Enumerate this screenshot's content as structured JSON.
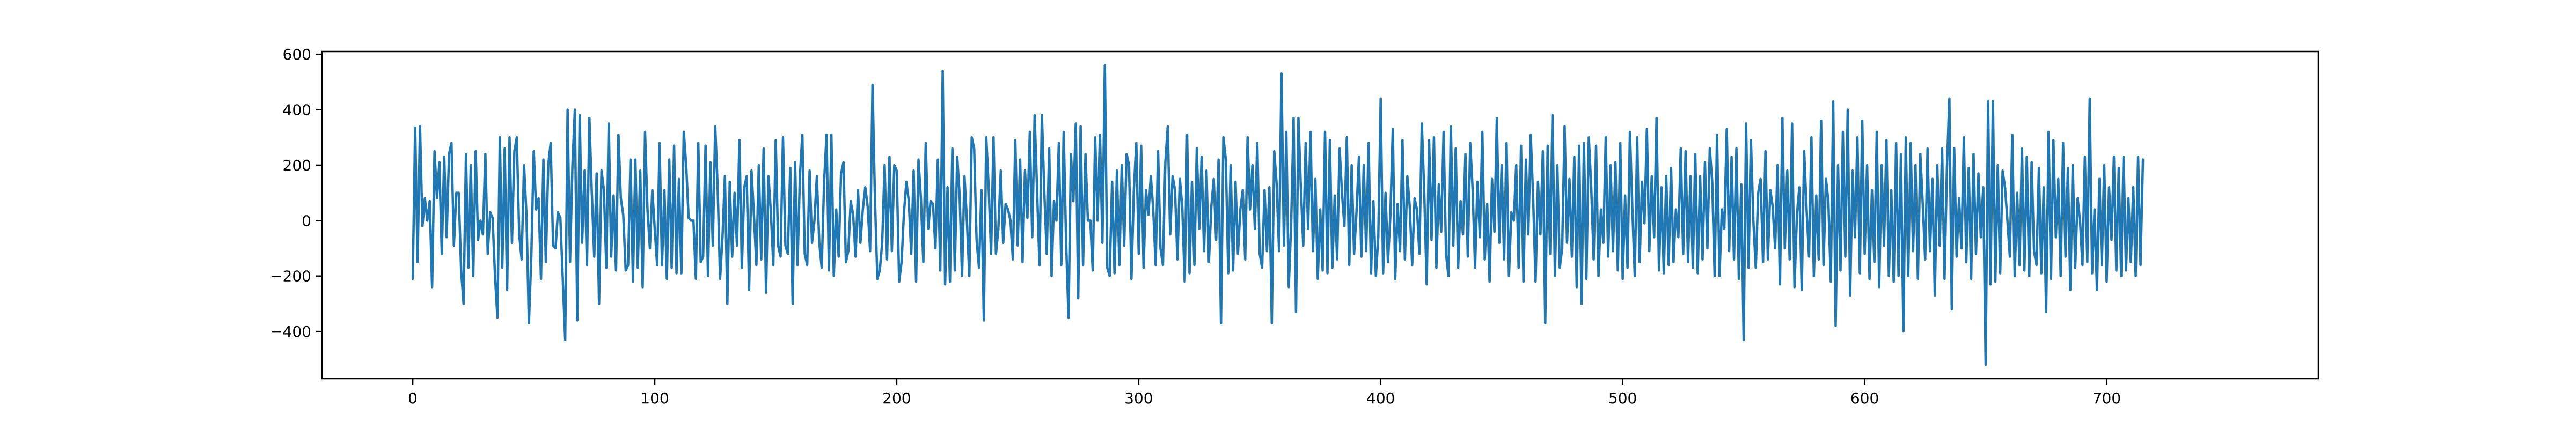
{
  "chart_data": {
    "type": "line",
    "title": "",
    "xlabel": "",
    "ylabel": "",
    "xlim": [
      -37.5,
      787.5
    ],
    "ylim": [
      -570,
      610
    ],
    "grid": false,
    "legend": "none",
    "x_ticks": [
      0,
      100,
      200,
      300,
      400,
      500,
      600,
      700
    ],
    "y_ticks": [
      -400,
      -200,
      0,
      200,
      400,
      600
    ],
    "colors": {
      "series": "#1f77b4",
      "axes": "#000000",
      "background": "#ffffff"
    },
    "series": [
      {
        "values": [
          -210,
          335,
          -150,
          340,
          -20,
          80,
          0,
          70,
          -240,
          250,
          80,
          210,
          -120,
          230,
          -60,
          240,
          280,
          -90,
          100,
          100,
          -180,
          -300,
          240,
          -170,
          200,
          -200,
          250,
          -70,
          0,
          -50,
          240,
          -120,
          30,
          10,
          -200,
          -350,
          300,
          -170,
          260,
          -250,
          300,
          -80,
          250,
          300,
          -50,
          -140,
          200,
          20,
          -370,
          -130,
          250,
          40,
          80,
          -210,
          220,
          -150,
          200,
          280,
          -90,
          -100,
          30,
          10,
          -210,
          -430,
          400,
          -150,
          200,
          400,
          -360,
          380,
          -80,
          180,
          -160,
          370,
          100,
          -130,
          170,
          -300,
          180,
          110,
          -170,
          350,
          -130,
          90,
          -180,
          310,
          80,
          20,
          -180,
          -160,
          220,
          -220,
          220,
          -170,
          180,
          -240,
          320,
          40,
          -100,
          110,
          -30,
          -160,
          280,
          -160,
          110,
          -210,
          220,
          -170,
          270,
          -190,
          150,
          -190,
          320,
          200,
          10,
          0,
          0,
          -210,
          280,
          -150,
          -130,
          270,
          -200,
          210,
          -90,
          340,
          120,
          -210,
          -60,
          160,
          -300,
          140,
          -130,
          100,
          -90,
          290,
          -170,
          120,
          160,
          -250,
          180,
          20,
          -160,
          200,
          -140,
          260,
          -260,
          160,
          30,
          -160,
          290,
          -90,
          -130,
          300,
          -90,
          -120,
          190,
          -300,
          210,
          -160,
          160,
          310,
          -120,
          -160,
          180,
          -80,
          0,
          160,
          -80,
          -170,
          140,
          310,
          -180,
          310,
          -200,
          40,
          -130,
          170,
          210,
          -150,
          -110,
          70,
          20,
          -130,
          110,
          -80,
          40,
          120,
          50,
          -110,
          490,
          80,
          -210,
          -180,
          -80,
          200,
          -140,
          230,
          -110,
          200,
          180,
          -220,
          -150,
          30,
          140,
          70,
          -120,
          180,
          -220,
          220,
          80,
          -150,
          280,
          -30,
          70,
          60,
          -100,
          220,
          -180,
          540,
          -230,
          120,
          -220,
          260,
          -180,
          230,
          90,
          -200,
          160,
          0,
          -200,
          300,
          260,
          -70,
          -170,
          110,
          -360,
          300,
          120,
          -120,
          300,
          -120,
          -30,
          180,
          -80,
          60,
          40,
          0,
          -140,
          290,
          -90,
          220,
          -150,
          180,
          10,
          320,
          -60,
          380,
          110,
          -160,
          380,
          100,
          -120,
          260,
          -200,
          70,
          0,
          280,
          -160,
          320,
          -80,
          -350,
          240,
          70,
          350,
          -280,
          340,
          -160,
          240,
          0,
          0,
          -180,
          300,
          0,
          310,
          -80,
          560,
          -170,
          -200,
          140,
          -190,
          180,
          -160,
          200,
          -90,
          240,
          200,
          -210,
          110,
          280,
          -120,
          270,
          -170,
          110,
          20,
          160,
          40,
          -160,
          250,
          -100,
          -160,
          210,
          340,
          -50,
          160,
          110,
          -140,
          150,
          50,
          -220,
          310,
          -190,
          140,
          -160,
          260,
          -30,
          230,
          -110,
          180,
          -150,
          50,
          150,
          -70,
          220,
          -370,
          300,
          220,
          -190,
          200,
          -180,
          140,
          -120,
          40,
          110,
          -140,
          300,
          40,
          200,
          -30,
          280,
          -120,
          -170,
          110,
          -110,
          120,
          -370,
          250,
          130,
          -110,
          530,
          -90,
          320,
          -240,
          -10,
          370,
          -330,
          370,
          120,
          -90,
          280,
          -30,
          320,
          -110,
          150,
          -210,
          40,
          -180,
          320,
          -190,
          290,
          -170,
          90,
          -140,
          260,
          100,
          -20,
          300,
          -160,
          200,
          -120,
          30,
          230,
          -130,
          200,
          -110,
          280,
          -190,
          70,
          -200,
          -60,
          440,
          -190,
          100,
          -150,
          20,
          330,
          -210,
          60,
          -110,
          290,
          -140,
          160,
          50,
          -160,
          80,
          40,
          -120,
          350,
          100,
          -230,
          290,
          -70,
          300,
          -170,
          130,
          -40,
          320,
          -120,
          -200,
          340,
          -90,
          260,
          -170,
          70,
          -50,
          240,
          -130,
          280,
          110,
          -170,
          140,
          -60,
          320,
          -140,
          60,
          -220,
          150,
          -40,
          370,
          -80,
          200,
          -140,
          280,
          -200,
          30,
          0,
          200,
          -170,
          270,
          -220,
          220,
          -50,
          310,
          80,
          -220,
          140,
          -50,
          250,
          -370,
          270,
          -120,
          380,
          -200,
          200,
          -170,
          -100,
          340,
          -80,
          150,
          -130,
          230,
          -240,
          270,
          -300,
          280,
          -210,
          300,
          120,
          -140,
          270,
          -200,
          40,
          -80,
          300,
          -130,
          200,
          -110,
          210,
          -180,
          280,
          -210,
          90,
          -170,
          320,
          40,
          -200,
          300,
          -150,
          140,
          -10,
          330,
          -110,
          160,
          -60,
          370,
          -180,
          120,
          -190,
          160,
          -160,
          190,
          -150,
          40,
          -60,
          260,
          -120,
          250,
          -150,
          160,
          -170,
          240,
          -190,
          160,
          -140,
          210,
          -100,
          260,
          140,
          -200,
          310,
          -200,
          40,
          -30,
          330,
          -110,
          230,
          -140,
          260,
          -210,
          130,
          -430,
          350,
          -170,
          290,
          0,
          -170,
          100,
          150,
          -150,
          250,
          -140,
          110,
          50,
          -100,
          200,
          -230,
          370,
          -100,
          180,
          -140,
          350,
          -240,
          20,
          120,
          -250,
          250,
          40,
          -130,
          300,
          -200,
          90,
          -140,
          360,
          -160,
          150,
          70,
          -220,
          430,
          -380,
          200,
          -180,
          320,
          -130,
          400,
          -270,
          180,
          -60,
          300,
          -190,
          360,
          -120,
          200,
          -210,
          110,
          -150,
          320,
          -240,
          200,
          -90,
          290,
          -200,
          110,
          -220,
          280,
          -200,
          240,
          -400,
          300,
          -200,
          280,
          -110,
          200,
          -210,
          240,
          60,
          -140,
          260,
          -110,
          150,
          -270,
          200,
          -90,
          260,
          -210,
          190,
          440,
          -320,
          260,
          -130,
          80,
          -100,
          300,
          -150,
          190,
          -210,
          240,
          -120,
          170,
          -60,
          120,
          -520,
          430,
          -230,
          430,
          -220,
          200,
          -190,
          180,
          120,
          0,
          -130,
          310,
          -200,
          100,
          -160,
          260,
          -180,
          230,
          -200,
          210,
          -110,
          -160,
          190,
          -190,
          120,
          -330,
          320,
          -210,
          290,
          -60,
          150,
          -200,
          280,
          -130,
          190,
          -250,
          200,
          -170,
          80,
          0,
          -160,
          230,
          -150,
          440,
          -190,
          40,
          -250,
          150,
          -160,
          200,
          -220,
          120,
          -70,
          230,
          -180,
          190,
          -200,
          230,
          -180,
          80,
          -150,
          120,
          -200,
          230,
          -160,
          220
        ]
      }
    ]
  }
}
